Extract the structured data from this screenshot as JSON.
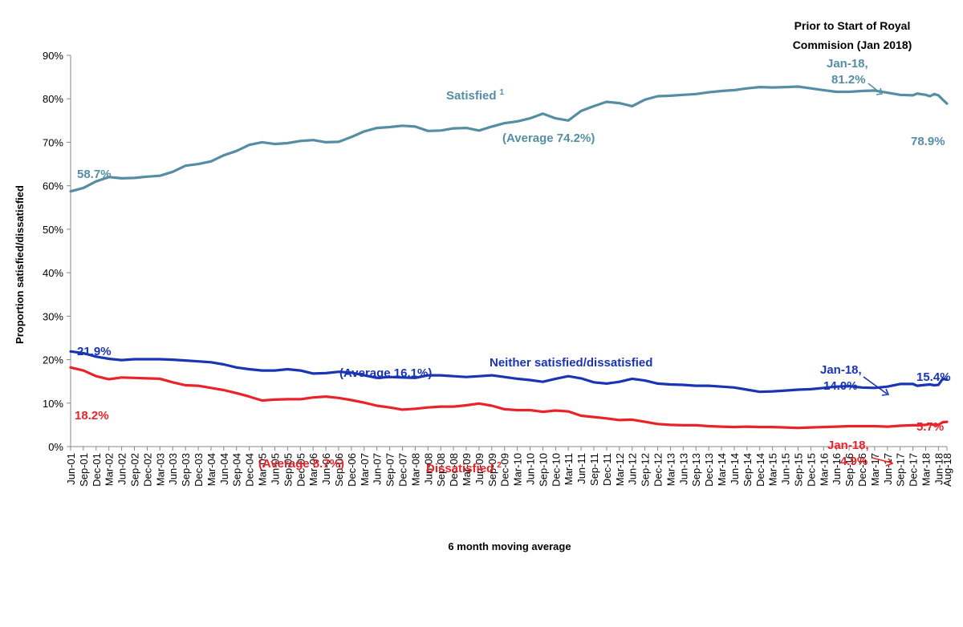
{
  "chart_data": {
    "type": "line",
    "xlabel": "6 month moving average",
    "ylabel": "Proportion satisfied/dissatisfied",
    "ylim": [
      0,
      90
    ],
    "yticks": [
      0,
      10,
      20,
      30,
      40,
      50,
      60,
      70,
      80,
      90
    ],
    "ytick_suffix": "%",
    "x_start": "2001-06",
    "x_end": "2018-08",
    "x_tick_labels": [
      "Jun-01",
      "Sep-01",
      "Dec-01",
      "Mar-02",
      "Jun-02",
      "Sep-02",
      "Dec-02",
      "Mar-03",
      "Jun-03",
      "Sep-03",
      "Dec-03",
      "Mar-04",
      "Jun-04",
      "Sep-04",
      "Dec-04",
      "Mar-05",
      "Jun-05",
      "Sep-05",
      "Dec-05",
      "Mar-06",
      "Jun-06",
      "Sep-06",
      "Dec-06",
      "Mar-07",
      "Jun-07",
      "Sep-07",
      "Dec-07",
      "Mar-08",
      "Jun-08",
      "Sep-08",
      "Dec-08",
      "Mar-09",
      "Jun-09",
      "Sep-09",
      "Dec-09",
      "Mar-10",
      "Jun-10",
      "Sep-10",
      "Dec-10",
      "Mar-11",
      "Jun-11",
      "Sep-11",
      "Dec-11",
      "Mar-12",
      "Jun-12",
      "Sep-12",
      "Dec-12",
      "Mar-13",
      "Jun-13",
      "Sep-13",
      "Dec-13",
      "Mar-14",
      "Jun-14",
      "Sep-14",
      "Dec-14",
      "Mar-15",
      "Jun-15",
      "Sep-15",
      "Dec-15",
      "Mar-16",
      "Jun-16",
      "Sep-16",
      "Dec-16",
      "Mar-17",
      "Jun-17",
      "Sep-17",
      "Dec-17",
      "Mar-18",
      "Jun-18",
      "Aug-18"
    ],
    "series": [
      {
        "name": "Satisfied",
        "name_sup": "1",
        "color": "#558ea4",
        "points": [
          [
            "2001-06",
            58.7
          ],
          [
            "2001-09",
            59.5
          ],
          [
            "2001-12",
            61
          ],
          [
            "2002-03",
            62
          ],
          [
            "2002-06",
            61.7
          ],
          [
            "2002-09",
            61.8
          ],
          [
            "2002-12",
            62.1
          ],
          [
            "2003-03",
            62.3
          ],
          [
            "2003-06",
            63.2
          ],
          [
            "2003-09",
            64.6
          ],
          [
            "2003-12",
            65
          ],
          [
            "2004-03",
            65.6
          ],
          [
            "2004-06",
            67
          ],
          [
            "2004-09",
            68
          ],
          [
            "2004-12",
            69.4
          ],
          [
            "2005-03",
            70
          ],
          [
            "2005-06",
            69.6
          ],
          [
            "2005-09",
            69.8
          ],
          [
            "2005-12",
            70.3
          ],
          [
            "2006-03",
            70.5
          ],
          [
            "2006-06",
            70
          ],
          [
            "2006-09",
            70.1
          ],
          [
            "2006-12",
            71.2
          ],
          [
            "2007-03",
            72.5
          ],
          [
            "2007-06",
            73.3
          ],
          [
            "2007-09",
            73.5
          ],
          [
            "2007-12",
            73.8
          ],
          [
            "2008-03",
            73.6
          ],
          [
            "2008-06",
            72.6
          ],
          [
            "2008-09",
            72.7
          ],
          [
            "2008-12",
            73.2
          ],
          [
            "2009-03",
            73.3
          ],
          [
            "2009-06",
            72.7
          ],
          [
            "2009-09",
            73.6
          ],
          [
            "2009-12",
            74.4
          ],
          [
            "2010-03",
            74.8
          ],
          [
            "2010-06",
            75.5
          ],
          [
            "2010-09",
            76.6
          ],
          [
            "2010-12",
            75.5
          ],
          [
            "2011-03",
            75
          ],
          [
            "2011-06",
            77.2
          ],
          [
            "2011-09",
            78.3
          ],
          [
            "2011-12",
            79.3
          ],
          [
            "2012-03",
            79
          ],
          [
            "2012-06",
            78.3
          ],
          [
            "2012-09",
            79.8
          ],
          [
            "2012-12",
            80.6
          ],
          [
            "2013-03",
            80.7
          ],
          [
            "2013-06",
            80.9
          ],
          [
            "2013-09",
            81.1
          ],
          [
            "2013-12",
            81.5
          ],
          [
            "2014-03",
            81.8
          ],
          [
            "2014-06",
            82
          ],
          [
            "2014-09",
            82.4
          ],
          [
            "2014-12",
            82.7
          ],
          [
            "2015-03",
            82.6
          ],
          [
            "2015-06",
            82.7
          ],
          [
            "2015-09",
            82.8
          ],
          [
            "2015-12",
            82.4
          ],
          [
            "2016-03",
            82
          ],
          [
            "2016-06",
            81.6
          ],
          [
            "2016-09",
            81.6
          ],
          [
            "2016-12",
            81.8
          ],
          [
            "2017-03",
            81.9
          ],
          [
            "2017-06",
            81.4
          ],
          [
            "2017-09",
            80.9
          ],
          [
            "2017-12",
            80.8
          ],
          [
            "2018-01",
            81.2
          ],
          [
            "2018-03",
            80.9
          ],
          [
            "2018-04",
            80.6
          ],
          [
            "2018-05",
            81.1
          ],
          [
            "2018-06",
            80.8
          ],
          [
            "2018-07",
            79.8
          ],
          [
            "2018-08",
            78.9
          ]
        ]
      },
      {
        "name": "Neither satisfied/dissatisfied",
        "color": "#1a35b4",
        "points": [
          [
            "2001-06",
            21.9
          ],
          [
            "2001-09",
            21.5
          ],
          [
            "2001-12",
            20.7
          ],
          [
            "2002-03",
            20.2
          ],
          [
            "2002-06",
            19.9
          ],
          [
            "2002-09",
            20.1
          ],
          [
            "2002-12",
            20.1
          ],
          [
            "2003-03",
            20.1
          ],
          [
            "2003-06",
            20
          ],
          [
            "2003-09",
            19.8
          ],
          [
            "2003-12",
            19.6
          ],
          [
            "2004-03",
            19.4
          ],
          [
            "2004-06",
            18.9
          ],
          [
            "2004-09",
            18.2
          ],
          [
            "2004-12",
            17.8
          ],
          [
            "2005-03",
            17.5
          ],
          [
            "2005-06",
            17.5
          ],
          [
            "2005-09",
            17.8
          ],
          [
            "2005-12",
            17.5
          ],
          [
            "2006-03",
            16.8
          ],
          [
            "2006-06",
            16.9
          ],
          [
            "2006-09",
            17.2
          ],
          [
            "2006-12",
            17
          ],
          [
            "2007-03",
            16.4
          ],
          [
            "2007-06",
            15.8
          ],
          [
            "2007-09",
            16
          ],
          [
            "2007-12",
            15.9
          ],
          [
            "2008-03",
            15.8
          ],
          [
            "2008-06",
            16.4
          ],
          [
            "2008-09",
            16.4
          ],
          [
            "2008-12",
            16.2
          ],
          [
            "2009-03",
            16
          ],
          [
            "2009-06",
            16.2
          ],
          [
            "2009-09",
            16.4
          ],
          [
            "2009-12",
            16
          ],
          [
            "2010-03",
            15.6
          ],
          [
            "2010-06",
            15.3
          ],
          [
            "2010-09",
            14.9
          ],
          [
            "2010-12",
            15.6
          ],
          [
            "2011-03",
            16.2
          ],
          [
            "2011-06",
            15.7
          ],
          [
            "2011-09",
            14.8
          ],
          [
            "2011-12",
            14.5
          ],
          [
            "2012-03",
            14.9
          ],
          [
            "2012-06",
            15.6
          ],
          [
            "2012-09",
            15.2
          ],
          [
            "2012-12",
            14.5
          ],
          [
            "2013-03",
            14.3
          ],
          [
            "2013-06",
            14.2
          ],
          [
            "2013-09",
            14
          ],
          [
            "2013-12",
            14
          ],
          [
            "2014-03",
            13.8
          ],
          [
            "2014-06",
            13.6
          ],
          [
            "2014-09",
            13.1
          ],
          [
            "2014-12",
            12.6
          ],
          [
            "2015-03",
            12.7
          ],
          [
            "2015-06",
            12.9
          ],
          [
            "2015-09",
            13.1
          ],
          [
            "2015-12",
            13.2
          ],
          [
            "2016-03",
            13.5
          ],
          [
            "2016-06",
            13.8
          ],
          [
            "2016-09",
            13.9
          ],
          [
            "2016-12",
            13.6
          ],
          [
            "2017-03",
            13.5
          ],
          [
            "2017-06",
            13.8
          ],
          [
            "2017-09",
            14.4
          ],
          [
            "2017-12",
            14.4
          ],
          [
            "2018-01",
            14
          ],
          [
            "2018-03",
            14.2
          ],
          [
            "2018-04",
            14.3
          ],
          [
            "2018-05",
            14.1
          ],
          [
            "2018-06",
            14.2
          ],
          [
            "2018-07",
            15.6
          ],
          [
            "2018-08",
            15.4
          ]
        ]
      },
      {
        "name": "Dissatisfied",
        "name_sup": "2",
        "color": "#e8242a",
        "points": [
          [
            "2001-06",
            18.2
          ],
          [
            "2001-09",
            17.5
          ],
          [
            "2001-12",
            16.2
          ],
          [
            "2002-03",
            15.5
          ],
          [
            "2002-06",
            15.9
          ],
          [
            "2002-09",
            15.8
          ],
          [
            "2002-12",
            15.7
          ],
          [
            "2003-03",
            15.6
          ],
          [
            "2003-06",
            14.8
          ],
          [
            "2003-09",
            14.1
          ],
          [
            "2003-12",
            14
          ],
          [
            "2004-03",
            13.5
          ],
          [
            "2004-06",
            13
          ],
          [
            "2004-09",
            12.3
          ],
          [
            "2004-12",
            11.5
          ],
          [
            "2005-03",
            10.6
          ],
          [
            "2005-06",
            10.8
          ],
          [
            "2005-09",
            10.9
          ],
          [
            "2005-12",
            10.9
          ],
          [
            "2006-03",
            11.3
          ],
          [
            "2006-06",
            11.5
          ],
          [
            "2006-09",
            11.2
          ],
          [
            "2006-12",
            10.7
          ],
          [
            "2007-03",
            10.1
          ],
          [
            "2007-06",
            9.4
          ],
          [
            "2007-09",
            9
          ],
          [
            "2007-12",
            8.5
          ],
          [
            "2008-03",
            8.7
          ],
          [
            "2008-06",
            9
          ],
          [
            "2008-09",
            9.2
          ],
          [
            "2008-12",
            9.2
          ],
          [
            "2009-03",
            9.5
          ],
          [
            "2009-06",
            9.9
          ],
          [
            "2009-09",
            9.4
          ],
          [
            "2009-12",
            8.6
          ],
          [
            "2010-03",
            8.4
          ],
          [
            "2010-06",
            8.4
          ],
          [
            "2010-09",
            8
          ],
          [
            "2010-12",
            8.3
          ],
          [
            "2011-03",
            8.1
          ],
          [
            "2011-06",
            7.1
          ],
          [
            "2011-09",
            6.8
          ],
          [
            "2011-12",
            6.5
          ],
          [
            "2012-03",
            6.1
          ],
          [
            "2012-06",
            6.2
          ],
          [
            "2012-09",
            5.7
          ],
          [
            "2012-12",
            5.2
          ],
          [
            "2013-03",
            5
          ],
          [
            "2013-06",
            4.9
          ],
          [
            "2013-09",
            4.9
          ],
          [
            "2013-12",
            4.7
          ],
          [
            "2014-03",
            4.6
          ],
          [
            "2014-06",
            4.5
          ],
          [
            "2014-09",
            4.6
          ],
          [
            "2014-12",
            4.5
          ],
          [
            "2015-03",
            4.5
          ],
          [
            "2015-06",
            4.4
          ],
          [
            "2015-09",
            4.3
          ],
          [
            "2015-12",
            4.4
          ],
          [
            "2016-03",
            4.5
          ],
          [
            "2016-06",
            4.6
          ],
          [
            "2016-09",
            4.7
          ],
          [
            "2016-12",
            4.7
          ],
          [
            "2017-03",
            4.7
          ],
          [
            "2017-06",
            4.6
          ],
          [
            "2017-09",
            4.8
          ],
          [
            "2017-12",
            4.9
          ],
          [
            "2018-01",
            4.9
          ],
          [
            "2018-03",
            5
          ],
          [
            "2018-04",
            5.2
          ],
          [
            "2018-05",
            5
          ],
          [
            "2018-06",
            5
          ],
          [
            "2018-07",
            5.6
          ],
          [
            "2018-08",
            5.7
          ]
        ]
      }
    ],
    "annotations": {
      "sat_start": "58.7%",
      "sat_avg": "(Average 74.2%)",
      "sat_jan18": [
        "Jan-18,",
        "81.2%"
      ],
      "sat_end": "78.9%",
      "neu_start": "21.9%",
      "neu_avg": "(Average 16.1%)",
      "neu_jan18": [
        "Jan-18,",
        "14.0%"
      ],
      "neu_end": "15.4%",
      "dis_start": "18.2%",
      "dis_avg": "(Average 8.7%)",
      "dis_jan18": [
        "Jan-18,",
        "4.9%"
      ],
      "dis_end": "5.7%",
      "royal_commission": [
        "Prior to Start of Royal",
        "Commision (Jan 2018)"
      ]
    }
  }
}
